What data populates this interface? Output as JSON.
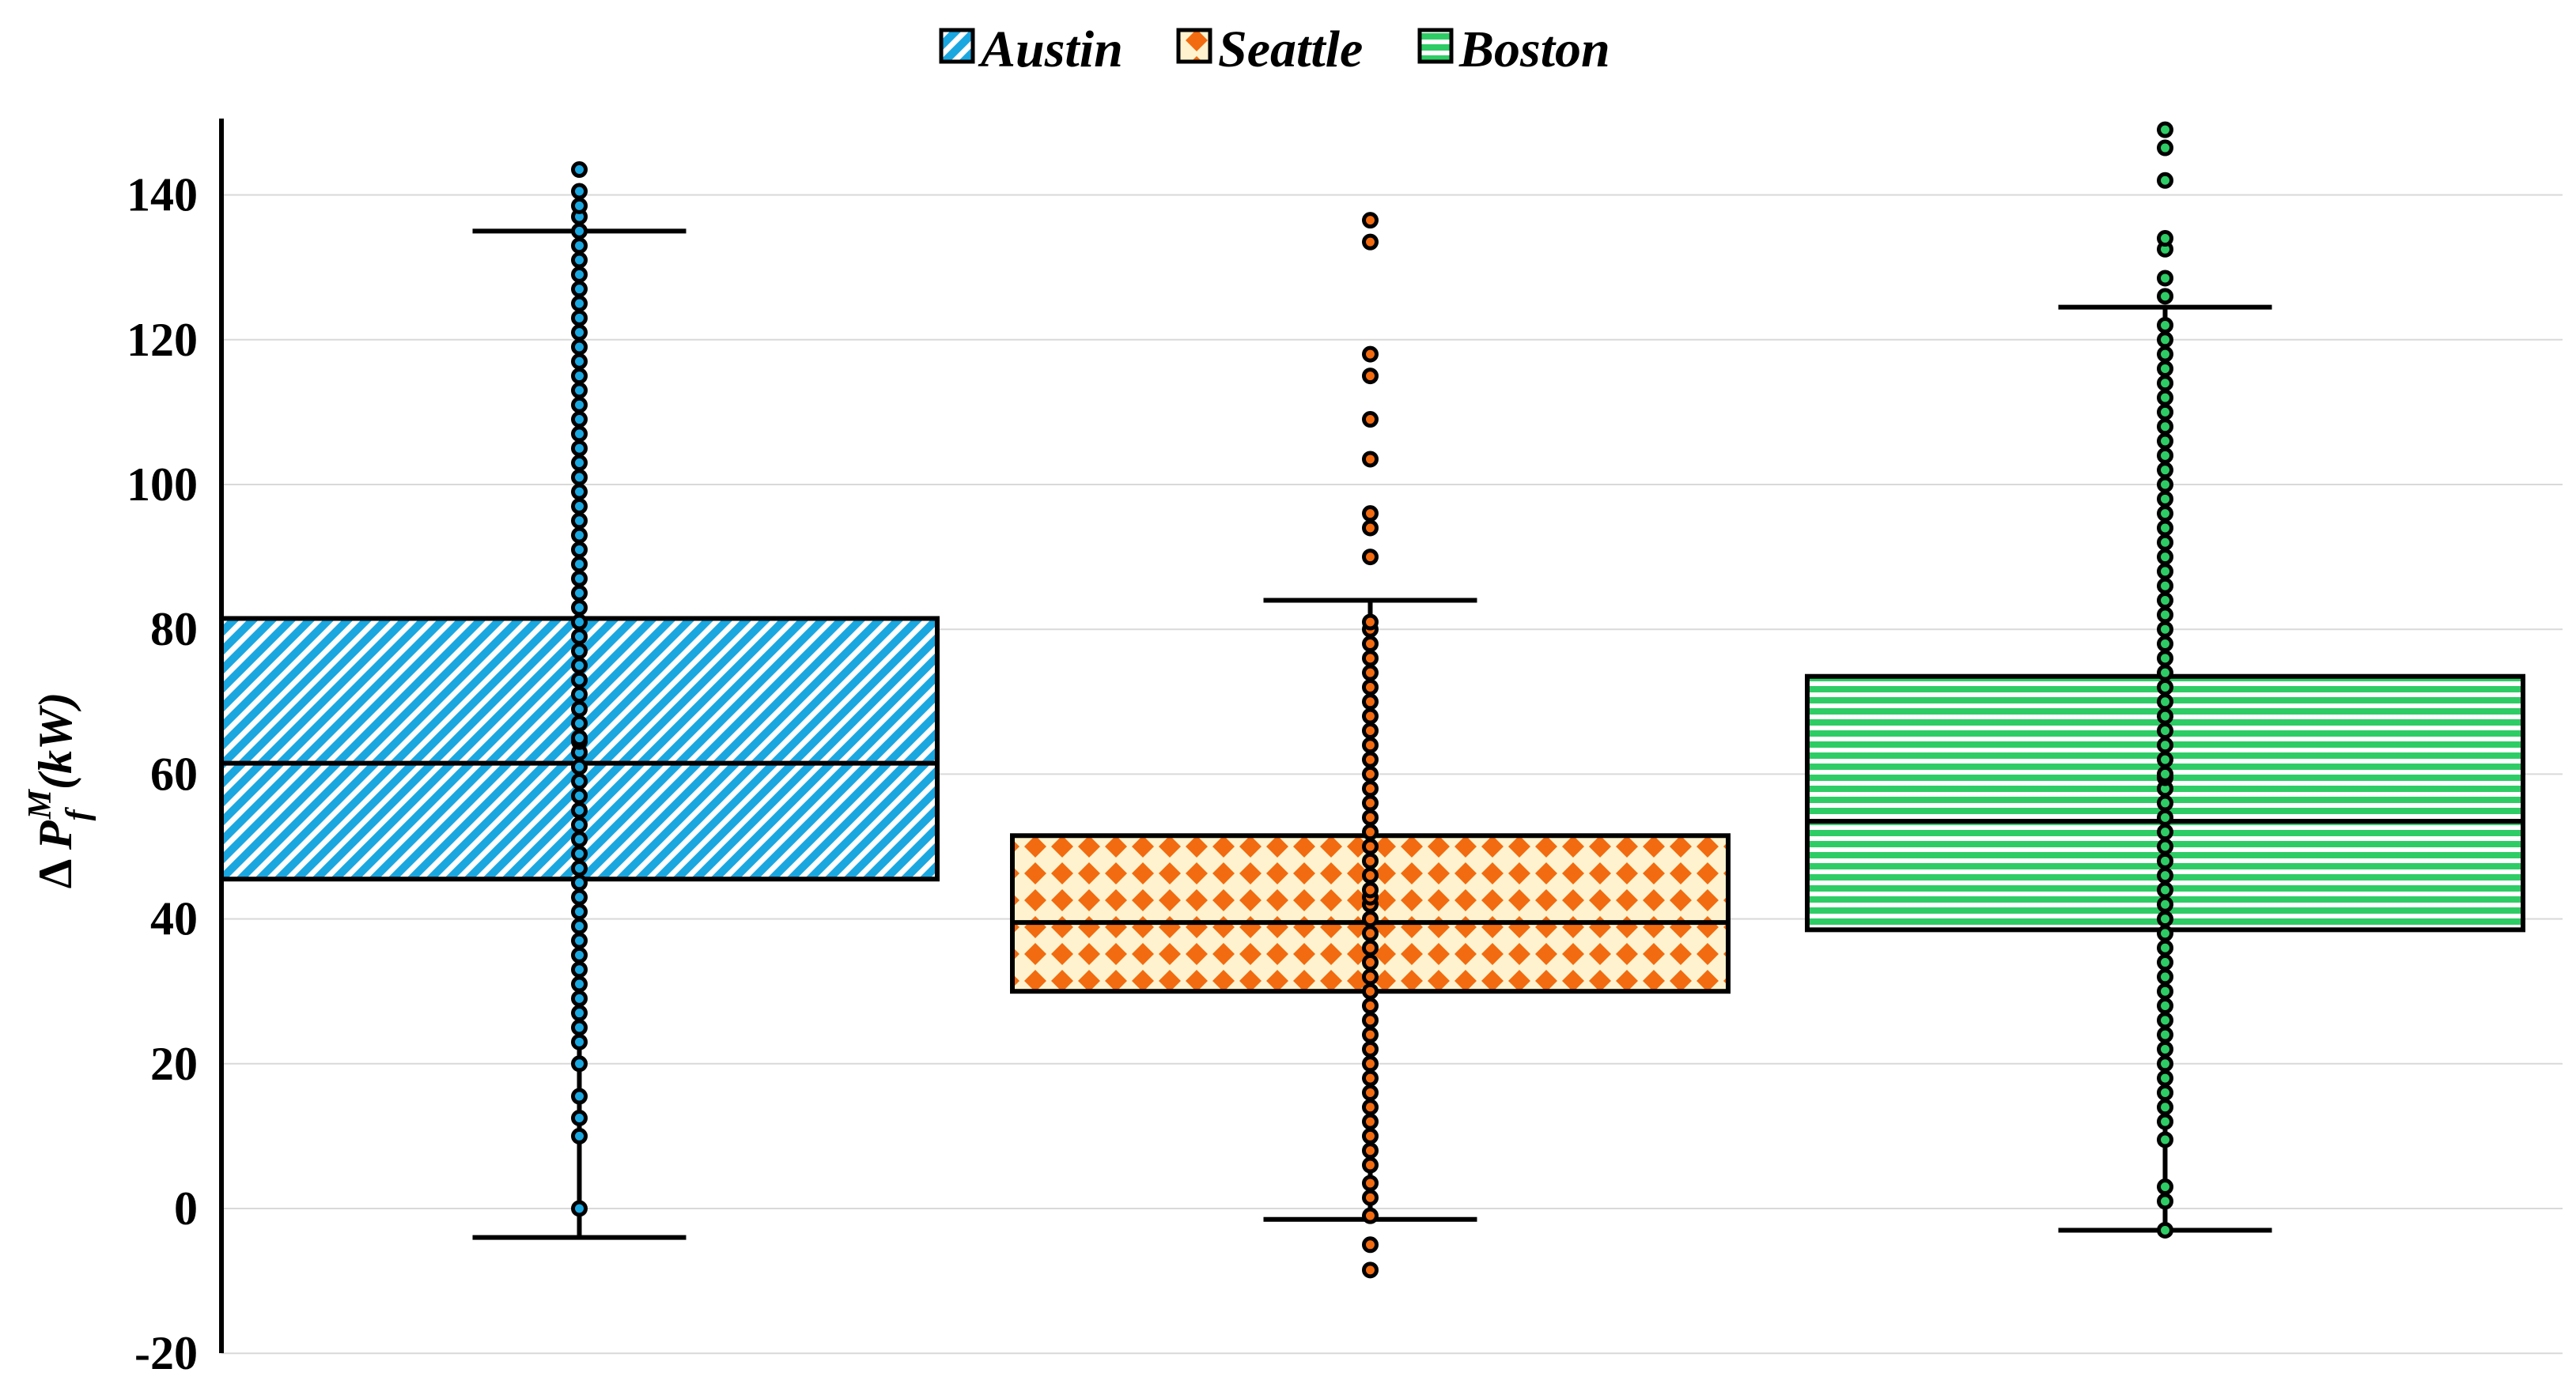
{
  "chart_data": {
    "type": "box",
    "ylabel": {
      "prefix": "Δ ",
      "symbol": "P",
      "subscript": "f",
      "superscript": "M",
      "unit": "(kW)"
    },
    "ylim": [
      -20,
      150
    ],
    "yticks": [
      -20,
      0,
      20,
      40,
      60,
      80,
      100,
      120,
      140
    ],
    "grid": true,
    "legend_position": "top-center",
    "series": [
      {
        "name": "Austin",
        "fill": "#1aa7e0",
        "pattern": "diagonal",
        "q1": 45.5,
        "median": 61.5,
        "q3": 81.5,
        "whisker_low": -4,
        "whisker_high": 135,
        "points": [
          0,
          10,
          12.5,
          15.5,
          20,
          23,
          25,
          27,
          29,
          31,
          33,
          35,
          37,
          39,
          41,
          43,
          45,
          47,
          49,
          51,
          53,
          55,
          57,
          59,
          61,
          63,
          64.5,
          65,
          67,
          69,
          71,
          73,
          75,
          77,
          79,
          81,
          83,
          85,
          87,
          89,
          91,
          93,
          95,
          97,
          99,
          101,
          103,
          105,
          107,
          109,
          111,
          113,
          115,
          117,
          119,
          121,
          123,
          125,
          127,
          129,
          131,
          133,
          135,
          137,
          138.5,
          140.5,
          143.5
        ]
      },
      {
        "name": "Seattle",
        "fill": "#f26b10",
        "pattern": "diamond",
        "q1": 30,
        "median": 39.5,
        "q3": 51.5,
        "whisker_low": -1.5,
        "whisker_high": 84,
        "points": [
          -8.5,
          -5,
          -1,
          1.5,
          3.5,
          6,
          8,
          10,
          12,
          14,
          16,
          18,
          20,
          22,
          24,
          26,
          28,
          30,
          32,
          34,
          36,
          38,
          40,
          42,
          43,
          44,
          46,
          48,
          50,
          52,
          54,
          56,
          58,
          60,
          62,
          64,
          66,
          68,
          70,
          72,
          74,
          76,
          78,
          80,
          81,
          90,
          94,
          96,
          103.5,
          109,
          115,
          118,
          133.5,
          136.5
        ]
      },
      {
        "name": "Boston",
        "fill": "#2ecc65",
        "pattern": "horizontal",
        "q1": 38.5,
        "median": 53.5,
        "q3": 73.5,
        "whisker_low": -3,
        "whisker_high": 124.5,
        "points": [
          -3,
          1,
          3,
          9.5,
          12,
          14,
          16,
          18,
          20,
          22,
          24,
          26,
          28,
          30,
          32,
          34,
          36,
          38,
          40,
          42,
          44,
          46,
          48,
          50,
          52,
          54,
          56,
          58,
          59.5,
          60,
          62,
          64,
          66,
          68,
          70,
          72,
          74,
          76,
          78,
          80,
          82,
          84,
          86,
          88,
          90,
          92,
          94,
          96,
          98,
          100,
          102,
          104,
          106,
          108,
          110,
          112,
          114,
          116,
          118,
          120,
          122,
          126,
          128.5,
          132.5,
          134,
          142,
          146.5,
          149
        ]
      }
    ]
  }
}
